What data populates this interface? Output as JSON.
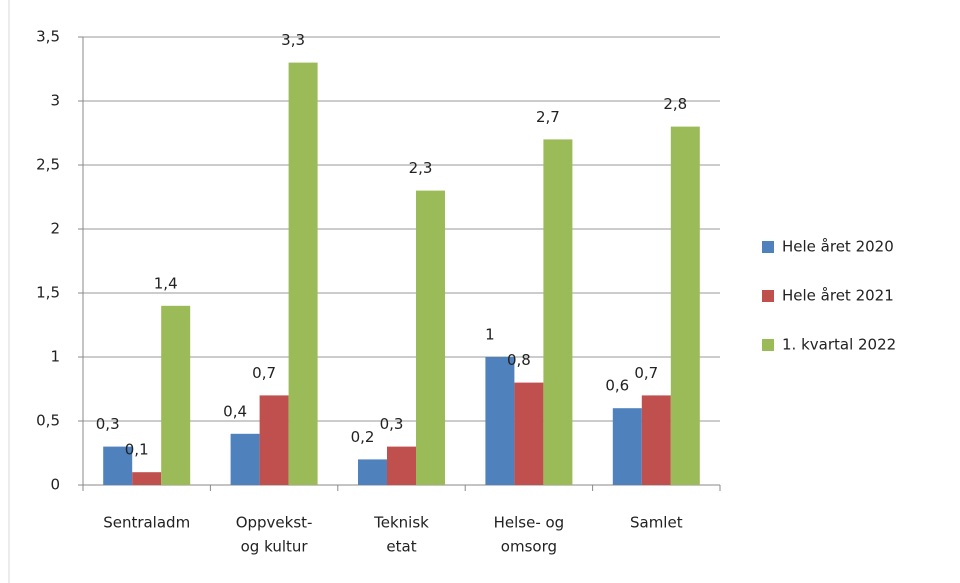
{
  "chart_data": {
    "type": "bar",
    "categories": [
      "Sentraladm",
      [
        "Oppvekst-",
        "og kultur"
      ],
      [
        "Teknisk",
        "etat"
      ],
      [
        "Helse- og",
        "omsorg"
      ],
      "Samlet"
    ],
    "series": [
      {
        "name": "Hele året 2020",
        "color": "#4f81bd",
        "values": [
          0.3,
          0.4,
          0.2,
          1,
          0.6
        ],
        "value_labels": [
          "0,3",
          "0,4",
          "0,2",
          "1",
          "0,6"
        ]
      },
      {
        "name": "Hele året 2021",
        "color": "#c0504d",
        "values": [
          0.1,
          0.7,
          0.3,
          0.8,
          0.7
        ],
        "value_labels": [
          "0,1",
          "0,7",
          "0,3",
          "0,8",
          "0,7"
        ]
      },
      {
        "name": "1. kvartal 2022",
        "color": "#9bbb59",
        "values": [
          1.4,
          3.3,
          2.3,
          2.7,
          2.8
        ],
        "value_labels": [
          "1,4",
          "3,3",
          "2,3",
          "2,7",
          "2,8"
        ]
      }
    ],
    "ylim": [
      0,
      3.5
    ],
    "yticks": [
      0,
      {
        "value": 0.5,
        "label": "0,5"
      },
      1,
      {
        "value": 1.5,
        "label": "1,5"
      },
      2,
      {
        "value": 2.5,
        "label": "2,5"
      },
      3,
      {
        "value": 3.5,
        "label": "3,5"
      }
    ],
    "grid": true,
    "legend": "right"
  }
}
